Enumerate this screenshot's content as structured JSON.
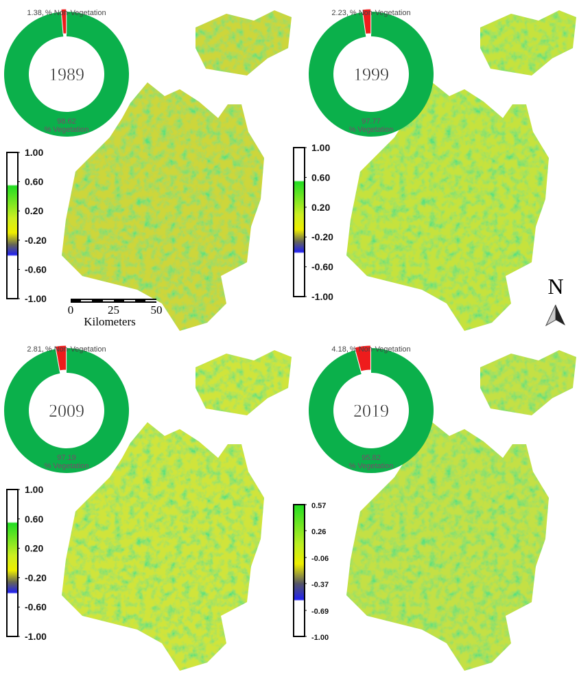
{
  "panels": [
    {
      "year": "1989",
      "donut": {
        "type": "pie",
        "categories": [
          "% Non-Vegetation",
          "% Vegetation"
        ],
        "values": [
          1.38,
          98.62
        ],
        "value_labels": [
          "1.38,",
          "98.62"
        ],
        "colors": [
          "#ee1c1c",
          "#0bb04b"
        ]
      },
      "colorbar": {
        "ylim": [
          -1,
          1
        ],
        "yticks": [
          {
            "value": 1,
            "label": "1.00"
          },
          {
            "value": 0.6,
            "label": "0.60"
          },
          {
            "value": 0.2,
            "label": "0.20"
          },
          {
            "value": -0.2,
            "label": "-0.20"
          },
          {
            "value": -0.6,
            "label": "-0.60"
          },
          {
            "value": -1,
            "label": "-1.00"
          }
        ]
      }
    },
    {
      "year": "1999",
      "donut": {
        "type": "pie",
        "categories": [
          "% Non-Vegetation",
          "% Vegetation"
        ],
        "values": [
          2.23,
          97.77
        ],
        "value_labels": [
          "2.23,",
          "97.77"
        ],
        "colors": [
          "#ee1c1c",
          "#0bb04b"
        ]
      },
      "colorbar": {
        "ylim": [
          -1,
          1
        ],
        "yticks": [
          {
            "value": 1,
            "label": "1.00"
          },
          {
            "value": 0.6,
            "label": "0.60"
          },
          {
            "value": 0.2,
            "label": "0.20"
          },
          {
            "value": -0.2,
            "label": "-0.20"
          },
          {
            "value": -0.6,
            "label": "-0.60"
          },
          {
            "value": -1,
            "label": "-1.00"
          }
        ]
      }
    },
    {
      "year": "2009",
      "donut": {
        "type": "pie",
        "categories": [
          "% Non-Vegetation",
          "% Vegetation"
        ],
        "values": [
          2.81,
          97.19
        ],
        "value_labels": [
          "2.81,",
          "97.19"
        ],
        "colors": [
          "#ee1c1c",
          "#0bb04b"
        ]
      },
      "colorbar": {
        "ylim": [
          -1,
          1
        ],
        "yticks": [
          {
            "value": 1,
            "label": "1.00"
          },
          {
            "value": 0.6,
            "label": "0.60"
          },
          {
            "value": 0.2,
            "label": "0.20"
          },
          {
            "value": -0.2,
            "label": "-0.20"
          },
          {
            "value": -0.6,
            "label": "-0.60"
          },
          {
            "value": -1,
            "label": "-1.00"
          }
        ]
      }
    },
    {
      "year": "2019",
      "donut": {
        "type": "pie",
        "categories": [
          "% Non-Vegetation",
          "% Vegetation"
        ],
        "values": [
          4.18,
          95.82
        ],
        "value_labels": [
          "4.18,",
          "95.82"
        ],
        "colors": [
          "#ee1c1c",
          "#0bb04b"
        ]
      },
      "colorbar": {
        "ylim": [
          -1,
          0.57
        ],
        "yticks": [
          {
            "value": 0.57,
            "label": "0.57"
          },
          {
            "value": 0.26,
            "label": "0.26"
          },
          {
            "value": -0.06,
            "label": "-0.06"
          },
          {
            "value": -0.37,
            "label": "-0.37"
          },
          {
            "value": -0.69,
            "label": "-0.69"
          },
          {
            "value": -1,
            "label": "-1.00"
          }
        ]
      }
    }
  ],
  "scale_bar": {
    "ticks": [
      0,
      25,
      50
    ],
    "label": "Kilometers"
  },
  "north": "N"
}
